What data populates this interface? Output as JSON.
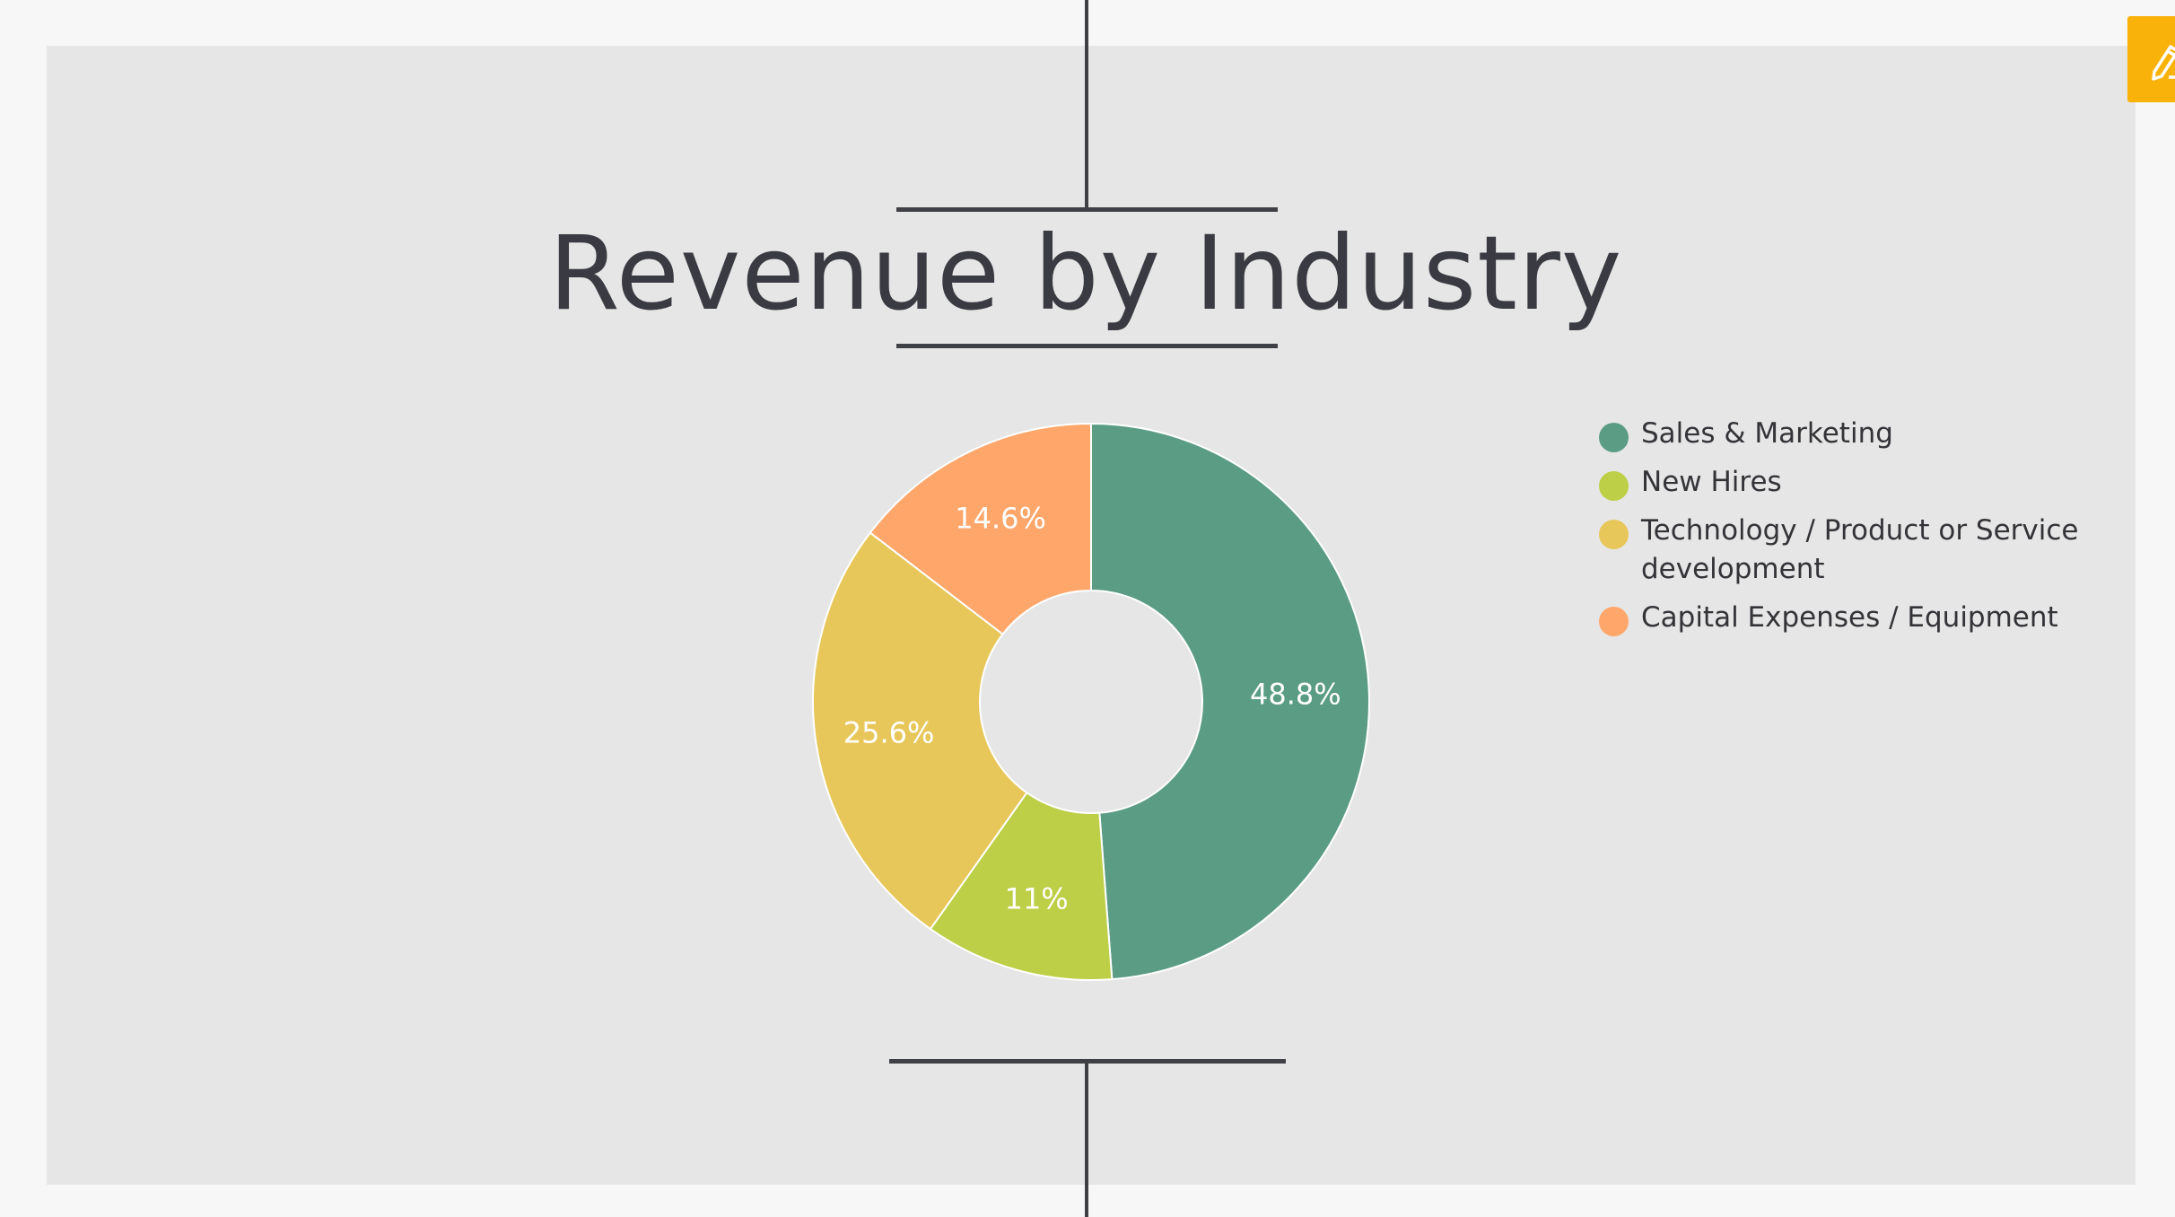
{
  "chart_data": {
    "type": "pie",
    "donut": true,
    "title": "Revenue by Industry",
    "legend_position": "right",
    "slices": [
      {
        "label": "Sales & Marketing",
        "value": 48.8,
        "display": "48.8%",
        "color": "#5b9c85"
      },
      {
        "label": "New Hires",
        "value": 11,
        "display": "11%",
        "color": "#bdcf47"
      },
      {
        "label": "Technology / Product or Service development",
        "value": 25.6,
        "display": "25.6%",
        "color": "#e8c75a"
      },
      {
        "label": "Capital Expenses / Equipment",
        "value": 14.6,
        "display": "14.6%",
        "color": "#ffa76b"
      }
    ]
  },
  "colors": {
    "background": "#e6e6e6",
    "title": "#3a3a42",
    "rules": "#3f3f46",
    "edit_button": "#f9b20a"
  },
  "edit_button": {
    "icon": "pencil-edit-icon"
  }
}
